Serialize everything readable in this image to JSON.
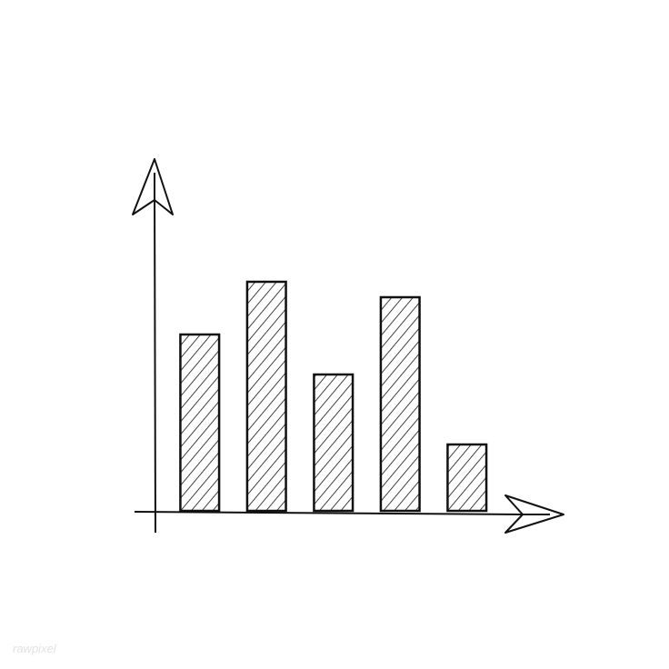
{
  "chart_data": {
    "type": "bar",
    "categories": [
      null,
      null,
      null,
      null,
      null
    ],
    "values": [
      194,
      252,
      150,
      235,
      73
    ],
    "color": "#111111",
    "ylim": [
      0,
      387
    ]
  },
  "watermark": "rawpixel"
}
